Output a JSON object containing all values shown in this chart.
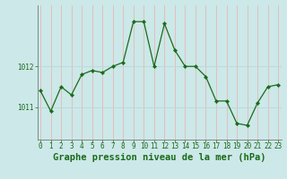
{
  "x": [
    0,
    1,
    2,
    3,
    4,
    5,
    6,
    7,
    8,
    9,
    10,
    11,
    12,
    13,
    14,
    15,
    16,
    17,
    18,
    19,
    20,
    21,
    22,
    23
  ],
  "y": [
    1011.4,
    1010.9,
    1011.5,
    1011.3,
    1011.8,
    1011.9,
    1011.85,
    1012.0,
    1012.1,
    1013.1,
    1013.1,
    1012.0,
    1013.05,
    1012.4,
    1012.0,
    1012.0,
    1011.75,
    1011.15,
    1011.15,
    1010.6,
    1010.55,
    1011.1,
    1011.5,
    1011.55
  ],
  "line_color": "#1a6b1a",
  "marker_color": "#1a6b1a",
  "bg_color": "#cce8e8",
  "grid_color_v": "#e8b8b8",
  "grid_color_h": "#b8d8d8",
  "xlabel": "Graphe pression niveau de la mer (hPa)",
  "yticks": [
    1011,
    1012
  ],
  "ylim": [
    1010.2,
    1013.5
  ],
  "xlim": [
    -0.3,
    23.3
  ],
  "xtick_labels": [
    "0",
    "1",
    "2",
    "3",
    "4",
    "5",
    "6",
    "7",
    "8",
    "9",
    "10",
    "11",
    "12",
    "13",
    "14",
    "15",
    "16",
    "17",
    "18",
    "19",
    "20",
    "21",
    "22",
    "23"
  ],
  "text_color": "#1a6b1a",
  "font_size": 5.5,
  "label_font_size": 7.5
}
